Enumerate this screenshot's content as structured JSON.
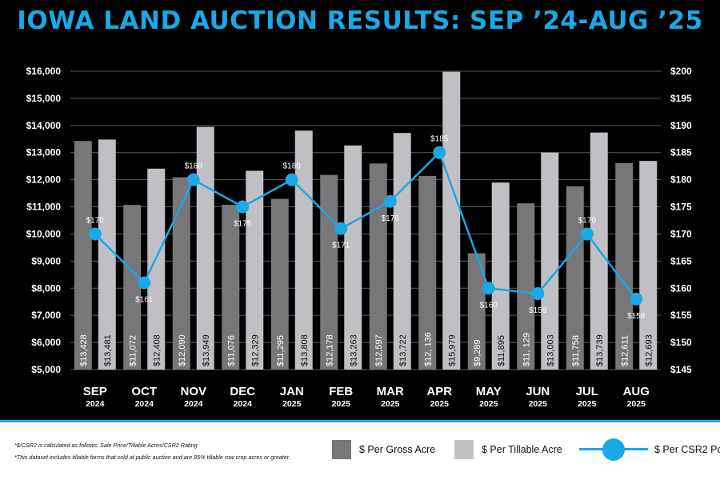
{
  "title": "IOWA LAND AUCTION RESULTS: SEP ’24-AUG ’25",
  "colors": {
    "background": "#000000",
    "accent": "#1aa8e6",
    "gross": "#77777a",
    "tillable": "#c0c0c4",
    "footer": "#ffffff"
  },
  "chart_data": {
    "type": "bar",
    "categories": [
      {
        "month": "SEP",
        "year": "2024"
      },
      {
        "month": "OCT",
        "year": "2024"
      },
      {
        "month": "NOV",
        "year": "2024"
      },
      {
        "month": "DEC",
        "year": "2024"
      },
      {
        "month": "JAN",
        "year": "2025"
      },
      {
        "month": "FEB",
        "year": "2025"
      },
      {
        "month": "MAR",
        "year": "2025"
      },
      {
        "month": "APR",
        "year": "2025"
      },
      {
        "month": "MAY",
        "year": "2025"
      },
      {
        "month": "JUN",
        "year": "2025"
      },
      {
        "month": "JUL",
        "year": "2025"
      },
      {
        "month": "AUG",
        "year": "2025"
      }
    ],
    "series": [
      {
        "name": "$ Per Gross Acre",
        "type": "bar",
        "axis": "left",
        "values": [
          13428,
          11072,
          12090,
          11076,
          11295,
          12178,
          12597,
          12136,
          9289,
          11129,
          11758,
          12611
        ],
        "labels": [
          "$13,428",
          "$11,072",
          "$12,090",
          "$11,076",
          "$11,295",
          "$12,178",
          "$12,597",
          "$12, 136",
          "$9,289",
          "$11, 129",
          "$11,758",
          "$12,611"
        ]
      },
      {
        "name": "$ Per Tillable Acre",
        "type": "bar",
        "axis": "left",
        "values": [
          13481,
          12408,
          13949,
          12329,
          13808,
          13263,
          13722,
          15979,
          11895,
          13003,
          13739,
          12693
        ],
        "labels": [
          "$13,481",
          "$12,408",
          "$13,949",
          "$12,329",
          "$13,808",
          "$13,263",
          "$13,722",
          "$15,979",
          "$11,895",
          "$13,003",
          "$13,739",
          "$12,693"
        ]
      },
      {
        "name": "$ Per CSR2 Point",
        "type": "line",
        "axis": "right",
        "values": [
          170,
          161,
          180,
          175,
          180,
          171,
          176,
          185,
          160,
          159,
          170,
          158
        ],
        "labels": [
          "$170",
          "$161",
          "$180",
          "$175",
          "$180",
          "$171",
          "$176",
          "$185",
          "$160",
          "$159",
          "$170",
          "$158"
        ]
      }
    ],
    "left_axis": {
      "min": 5000,
      "max": 16000,
      "step": 1000,
      "ticks": [
        "$5,000",
        "$6,000",
        "$7,000",
        "$8,000",
        "$9,000",
        "$10,000",
        "$11,000",
        "$12,000",
        "$13,000",
        "$14,000",
        "$15,000",
        "$16,000"
      ]
    },
    "right_axis": {
      "min": 145,
      "max": 200,
      "step": 5,
      "ticks": [
        "$145",
        "$150",
        "$155",
        "$160",
        "$165",
        "$170",
        "$175",
        "$180",
        "$185",
        "$190",
        "$195",
        "$200"
      ]
    },
    "grid": true
  },
  "footnotes": [
    "*$/CSR2 is calculated as follows: Sale Price/Tillable Acres/CSR2 Rating",
    "*This dataset includes tillable farms that sold at public auction and are 85% tillable row crop acres or greater."
  ],
  "legend": {
    "gross": "$ Per Gross Acre",
    "tillable": "$ Per Tillable Acre",
    "csr": "$ Per CSR2 Point"
  }
}
